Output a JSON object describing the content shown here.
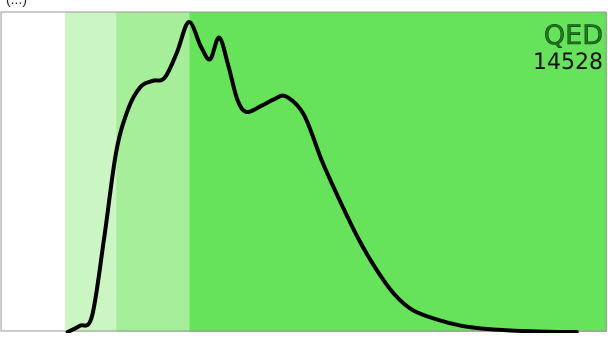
{
  "page_fragment": "(...)",
  "chart_data": {
    "type": "area",
    "title": "QED",
    "subtitle": "14528",
    "xlabel": "",
    "ylabel": "",
    "xlim": [
      0,
      1
    ],
    "ylim": [
      0,
      1
    ],
    "grid": false,
    "legend": "none",
    "bands": [
      {
        "x0": 0.0,
        "x1": 0.106,
        "color": "#ffffff"
      },
      {
        "x0": 0.106,
        "x1": 0.19,
        "color": "#ccf5c4"
      },
      {
        "x0": 0.19,
        "x1": 0.311,
        "color": "#a7ee9a"
      },
      {
        "x0": 0.311,
        "x1": 1.0,
        "color": "#67e25b"
      }
    ],
    "series": [
      {
        "color": "#000000",
        "x": [
          0.11,
          0.13,
          0.15,
          0.17,
          0.19,
          0.21,
          0.23,
          0.25,
          0.27,
          0.29,
          0.31,
          0.33,
          0.345,
          0.36,
          0.375,
          0.39,
          0.405,
          0.43,
          0.45,
          0.47,
          0.5,
          0.53,
          0.56,
          0.59,
          0.62,
          0.65,
          0.68,
          0.72,
          0.76,
          0.8,
          0.84,
          0.88,
          0.92,
          0.95
        ],
        "y": [
          0.0,
          0.02,
          0.05,
          0.3,
          0.58,
          0.72,
          0.79,
          0.81,
          0.82,
          0.9,
          1.0,
          0.92,
          0.88,
          0.95,
          0.86,
          0.75,
          0.71,
          0.73,
          0.75,
          0.76,
          0.7,
          0.55,
          0.42,
          0.3,
          0.2,
          0.12,
          0.07,
          0.04,
          0.02,
          0.01,
          0.005,
          0.002,
          0.0,
          0.0
        ]
      }
    ]
  }
}
